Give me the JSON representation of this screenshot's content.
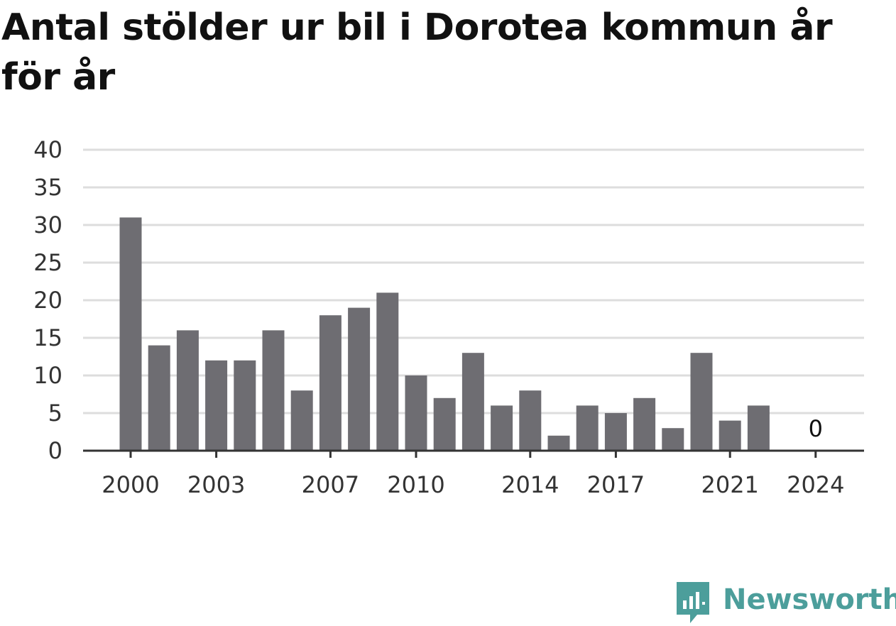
{
  "title": "Antal stölder ur bil i Dorotea kommun år för år",
  "brand": {
    "name": "Newsworthy",
    "icon": "newsworthy-logo-icon",
    "color": "#4c9e9b"
  },
  "colors": {
    "bar": "#6e6d72",
    "grid": "#dddddd",
    "axis": "#333333",
    "text": "#333333"
  },
  "chart_data": {
    "type": "bar",
    "categories": [
      "2000",
      "2001",
      "2002",
      "2003",
      "2004",
      "2005",
      "2006",
      "2007",
      "2008",
      "2009",
      "2010",
      "2011",
      "2012",
      "2013",
      "2014",
      "2015",
      "2016",
      "2017",
      "2018",
      "2019",
      "2020",
      "2021",
      "2022",
      "2023",
      "2024"
    ],
    "values": [
      31,
      14,
      16,
      12,
      12,
      16,
      8,
      18,
      19,
      21,
      10,
      7,
      13,
      6,
      8,
      2,
      6,
      5,
      7,
      3,
      13,
      4,
      6,
      null,
      0
    ],
    "x_tick_labels": [
      "2000",
      "2003",
      "2007",
      "2010",
      "2014",
      "2017",
      "2021",
      "2024"
    ],
    "y_ticks": [
      "0",
      "5",
      "10",
      "15",
      "20",
      "25",
      "30",
      "35",
      "40"
    ],
    "ylim": [
      0,
      40
    ],
    "grid": true,
    "annotations": [
      {
        "category": "2024",
        "text": "0"
      }
    ]
  }
}
